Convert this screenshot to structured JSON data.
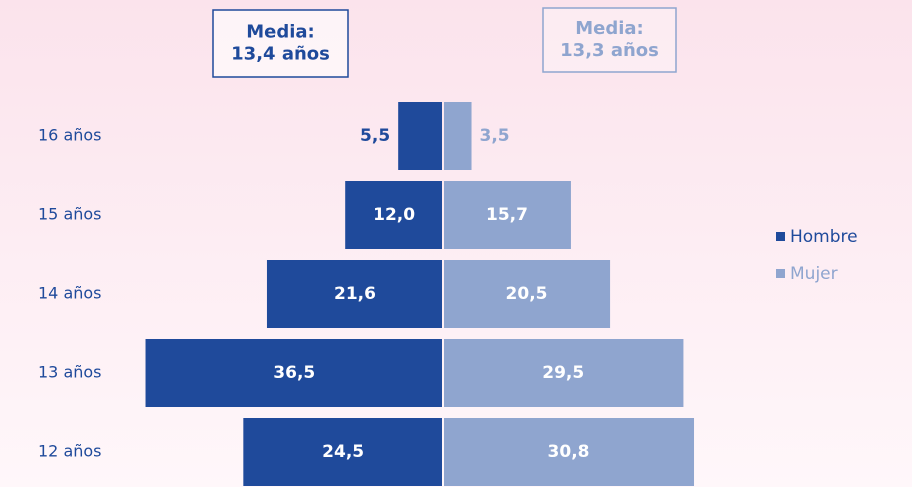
{
  "chart_data": {
    "type": "pyramid",
    "categories": [
      "16 años",
      "15 años",
      "14 años",
      "13 años",
      "12 años"
    ],
    "series": [
      {
        "name": "Hombre",
        "color": "#1f4a9b",
        "values": [
          5.5,
          12.0,
          21.6,
          36.5,
          24.5
        ],
        "value_labels": [
          "5,5",
          "12,0",
          "21,6",
          "36,5",
          "24,5"
        ]
      },
      {
        "name": "Mujer",
        "color": "#8fa5cf",
        "values": [
          3.5,
          15.7,
          20.5,
          29.5,
          30.8
        ],
        "value_labels": [
          "3,5",
          "15,7",
          "20,5",
          "29,5",
          "30,8"
        ]
      }
    ],
    "annotations": [
      {
        "lines": [
          "Media:",
          "13,4 años"
        ]
      },
      {
        "lines": [
          "Media:",
          "13,3 años"
        ]
      }
    ],
    "legend": "right"
  }
}
